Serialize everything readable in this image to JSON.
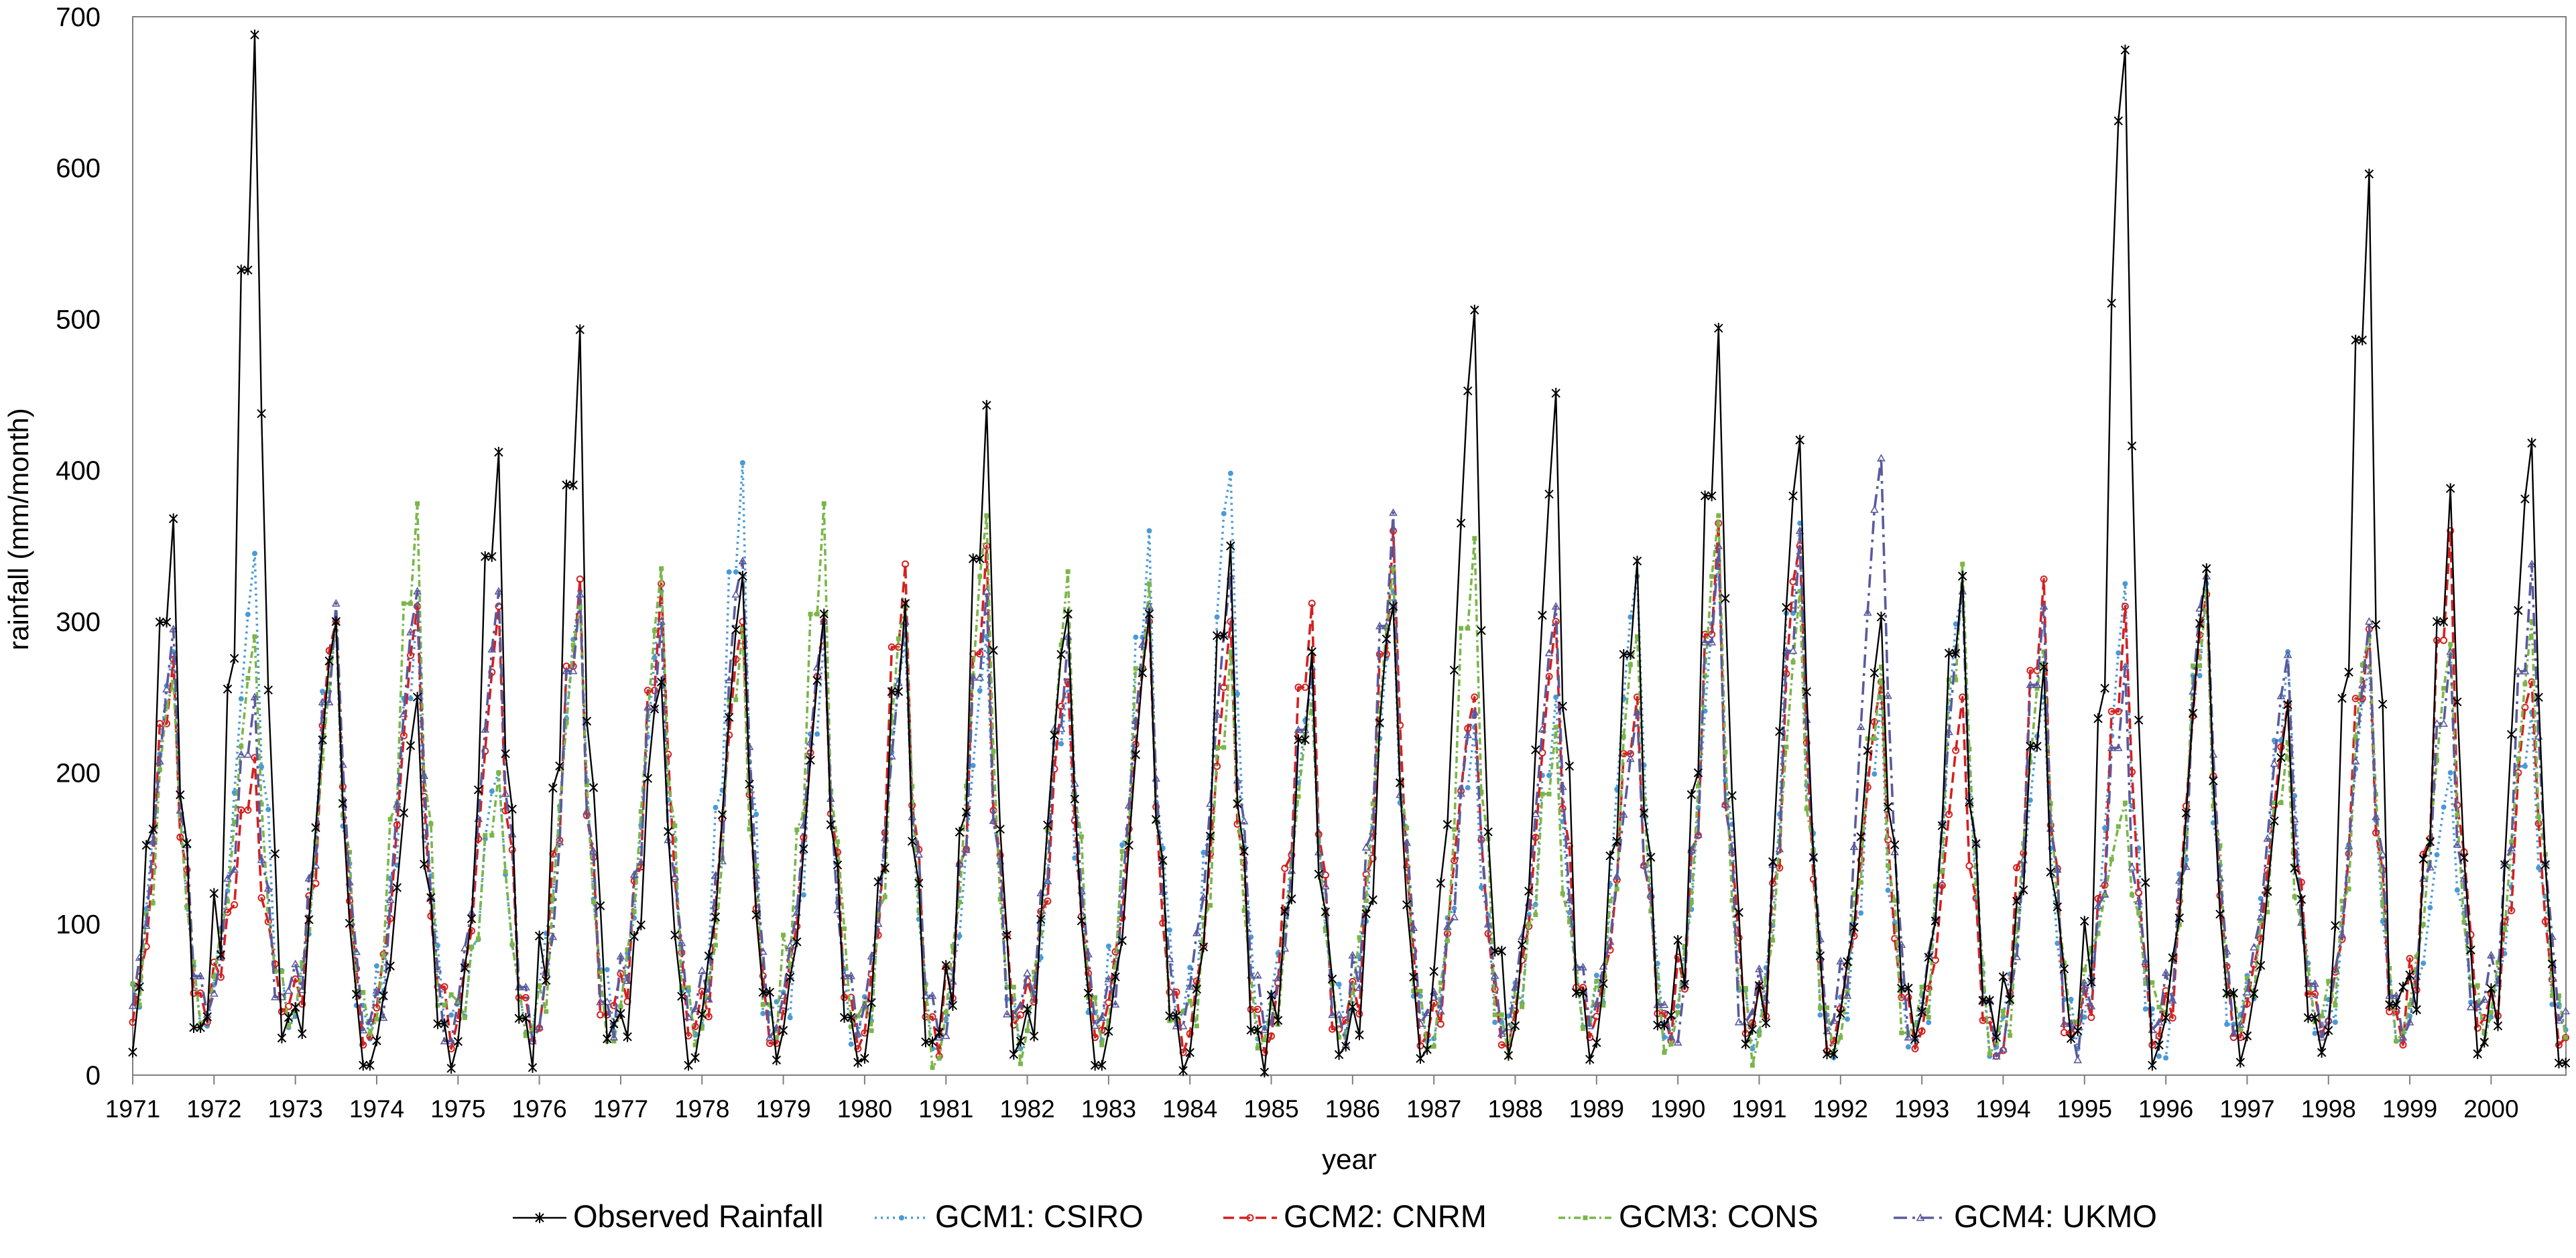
{
  "chart_data": {
    "type": "line",
    "title": "",
    "xlabel": "year",
    "ylabel": "rainfall (mm/month)",
    "ylim": [
      0,
      700
    ],
    "yticks": [
      "0",
      "100",
      "200",
      "300",
      "400",
      "500",
      "600",
      "700"
    ],
    "xlim": [
      1971.0,
      2000.92
    ],
    "xticks": [
      "1971",
      "1972",
      "1973",
      "1974",
      "1975",
      "1976",
      "1977",
      "1978",
      "1979",
      "1980",
      "1981",
      "1982",
      "1983",
      "1984",
      "1985",
      "1986",
      "1987",
      "1988",
      "1989",
      "1990",
      "1991",
      "1992",
      "1993",
      "1994",
      "1995",
      "1996",
      "1997",
      "1998",
      "1999",
      "2000"
    ],
    "grid": false,
    "legend_position": "bottom",
    "x_note": "monthly series; x values are decimal years (month index / 12)",
    "series": [
      {
        "name": "Observed Rainfall",
        "color": "#000000",
        "dash": "",
        "marker": "star",
        "peaks": [
          [
            1971.5,
            368
          ],
          [
            1972.5,
            688
          ],
          [
            1973.5,
            300
          ],
          [
            1974.5,
            250
          ],
          [
            1975.5,
            412
          ],
          [
            1976.5,
            493
          ],
          [
            1977.5,
            260
          ],
          [
            1978.5,
            330
          ],
          [
            1979.5,
            305
          ],
          [
            1980.5,
            312
          ],
          [
            1981.5,
            443
          ],
          [
            1982.5,
            305
          ],
          [
            1983.5,
            305
          ],
          [
            1984.5,
            350
          ],
          [
            1985.5,
            280
          ],
          [
            1986.5,
            310
          ],
          [
            1987.5,
            506
          ],
          [
            1988.5,
            451
          ],
          [
            1989.5,
            340
          ],
          [
            1990.5,
            494
          ],
          [
            1991.5,
            420
          ],
          [
            1992.5,
            303
          ],
          [
            1993.5,
            330
          ],
          [
            1994.5,
            270
          ],
          [
            1995.5,
            678
          ],
          [
            1996.5,
            335
          ],
          [
            1997.5,
            245
          ],
          [
            1998.5,
            596
          ],
          [
            1999.5,
            388
          ],
          [
            2000.5,
            418
          ]
        ],
        "troughs": [
          8,
          12,
          10,
          3,
          6,
          4,
          5,
          8,
          12,
          5,
          2,
          8,
          5,
          1,
          3,
          2,
          20,
          6,
          15,
          12,
          10,
          18,
          30,
          20,
          8,
          5,
          12,
          18,
          5,
          8
        ]
      },
      {
        "name": "GCM1: CSIRO",
        "color": "#4a9ad6",
        "dash": "3,6",
        "marker": "dot",
        "peaks": [
          [
            1971.5,
            280
          ],
          [
            1972.5,
            345
          ],
          [
            1973.5,
            300
          ],
          [
            1974.5,
            310
          ],
          [
            1975.5,
            200
          ],
          [
            1976.5,
            320
          ],
          [
            1977.5,
            320
          ],
          [
            1978.5,
            405
          ],
          [
            1979.5,
            290
          ],
          [
            1980.5,
            285
          ],
          [
            1981.5,
            290
          ],
          [
            1982.5,
            260
          ],
          [
            1983.5,
            360
          ],
          [
            1984.5,
            398
          ],
          [
            1985.5,
            260
          ],
          [
            1986.5,
            320
          ],
          [
            1987.5,
            230
          ],
          [
            1988.5,
            250
          ],
          [
            1989.5,
            330
          ],
          [
            1990.5,
            340
          ],
          [
            1991.5,
            365
          ],
          [
            1992.5,
            250
          ],
          [
            1993.5,
            320
          ],
          [
            1994.5,
            250
          ],
          [
            1995.5,
            325
          ],
          [
            1996.5,
            325
          ],
          [
            1997.5,
            280
          ],
          [
            1998.5,
            270
          ],
          [
            1999.5,
            200
          ],
          [
            2000.5,
            240
          ]
        ],
        "troughs": [
          30,
          35,
          28,
          20,
          25,
          30,
          28,
          25,
          10,
          20,
          15,
          20,
          25,
          18,
          30,
          25,
          20,
          25,
          30,
          20,
          15,
          8,
          10,
          15,
          20,
          5,
          25,
          20,
          25,
          30
        ]
      },
      {
        "name": "GCM2: CNRM",
        "color": "#d42020",
        "dash": "16,8",
        "marker": "ring",
        "peaks": [
          [
            1971.5,
            275
          ],
          [
            1972.5,
            210
          ],
          [
            1973.5,
            300
          ],
          [
            1974.5,
            310
          ],
          [
            1975.5,
            310
          ],
          [
            1976.5,
            328
          ],
          [
            1977.5,
            325
          ],
          [
            1978.5,
            300
          ],
          [
            1979.5,
            300
          ],
          [
            1980.5,
            338
          ],
          [
            1981.5,
            350
          ],
          [
            1982.5,
            260
          ],
          [
            1983.5,
            300
          ],
          [
            1984.5,
            300
          ],
          [
            1985.5,
            312
          ],
          [
            1986.5,
            360
          ],
          [
            1987.5,
            250
          ],
          [
            1988.5,
            300
          ],
          [
            1989.5,
            250
          ],
          [
            1990.5,
            365
          ],
          [
            1991.5,
            350
          ],
          [
            1992.5,
            260
          ],
          [
            1993.5,
            250
          ],
          [
            1994.5,
            328
          ],
          [
            1995.5,
            310
          ],
          [
            1996.5,
            318
          ],
          [
            1997.5,
            245
          ],
          [
            1998.5,
            295
          ],
          [
            1999.5,
            360
          ],
          [
            2000.5,
            260
          ]
        ],
        "troughs": [
          25,
          45,
          25,
          15,
          20,
          25,
          18,
          22,
          20,
          15,
          10,
          30,
          20,
          10,
          20,
          5,
          20,
          20,
          30,
          15,
          12,
          20,
          15,
          10,
          8,
          20,
          30,
          25,
          15,
          20
        ]
      },
      {
        "name": "GCM3: CONS",
        "color": "#7ab648",
        "dash": "10,5,3,5",
        "marker": "square",
        "peaks": [
          [
            1971.5,
            260
          ],
          [
            1972.5,
            290
          ],
          [
            1973.5,
            300
          ],
          [
            1974.5,
            378
          ],
          [
            1975.5,
            200
          ],
          [
            1976.5,
            310
          ],
          [
            1977.5,
            335
          ],
          [
            1978.5,
            295
          ],
          [
            1979.5,
            378
          ],
          [
            1980.5,
            310
          ],
          [
            1981.5,
            370
          ],
          [
            1982.5,
            333
          ],
          [
            1983.5,
            325
          ],
          [
            1984.5,
            280
          ],
          [
            1985.5,
            245
          ],
          [
            1986.5,
            335
          ],
          [
            1987.5,
            355
          ],
          [
            1988.5,
            230
          ],
          [
            1989.5,
            290
          ],
          [
            1990.5,
            370
          ],
          [
            1991.5,
            320
          ],
          [
            1992.5,
            270
          ],
          [
            1993.5,
            338
          ],
          [
            1994.5,
            280
          ],
          [
            1995.5,
            180
          ],
          [
            1996.5,
            320
          ],
          [
            1997.5,
            220
          ],
          [
            1998.5,
            290
          ],
          [
            1999.5,
            285
          ],
          [
            2000.5,
            300
          ]
        ],
        "troughs": [
          28,
          40,
          25,
          30,
          20,
          25,
          20,
          20,
          30,
          5,
          5,
          10,
          30,
          5,
          20,
          30,
          5,
          20,
          25,
          5,
          8,
          20,
          5,
          10,
          60,
          30,
          30,
          25,
          20,
          25
        ]
      },
      {
        "name": "GCM4: UKMO",
        "color": "#5a5a9e",
        "dash": "20,8,4,8",
        "marker": "triangle",
        "peaks": [
          [
            1971.5,
            295
          ],
          [
            1972.5,
            250
          ],
          [
            1973.5,
            312
          ],
          [
            1974.5,
            320
          ],
          [
            1975.5,
            320
          ],
          [
            1976.5,
            318
          ],
          [
            1977.5,
            300
          ],
          [
            1978.5,
            340
          ],
          [
            1979.5,
            300
          ],
          [
            1980.5,
            300
          ],
          [
            1981.5,
            320
          ],
          [
            1982.5,
            290
          ],
          [
            1983.5,
            310
          ],
          [
            1984.5,
            330
          ],
          [
            1985.5,
            270
          ],
          [
            1986.5,
            372
          ],
          [
            1987.5,
            240
          ],
          [
            1988.5,
            310
          ],
          [
            1989.5,
            240
          ],
          [
            1990.5,
            350
          ],
          [
            1991.5,
            360
          ],
          [
            1992.5,
            408
          ],
          [
            1993.5,
            320
          ],
          [
            1994.5,
            310
          ],
          [
            1995.5,
            270
          ],
          [
            1996.5,
            330
          ],
          [
            1997.5,
            278
          ],
          [
            1998.5,
            300
          ],
          [
            1999.5,
            280
          ],
          [
            2000.5,
            338
          ]
        ],
        "troughs": [
          30,
          50,
          28,
          20,
          25,
          20,
          30,
          25,
          25,
          30,
          20,
          25,
          30,
          35,
          25,
          15,
          25,
          30,
          35,
          15,
          15,
          30,
          20,
          5,
          15,
          25,
          30,
          20,
          30,
          30
        ]
      }
    ]
  }
}
